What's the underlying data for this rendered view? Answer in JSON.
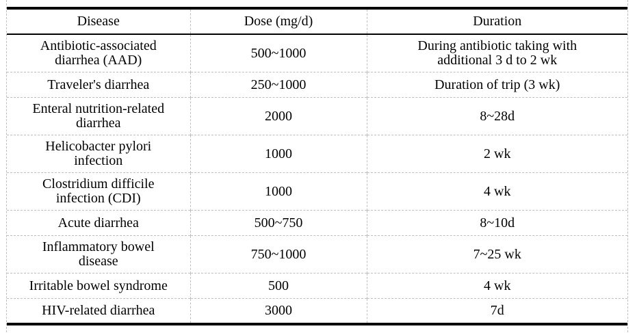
{
  "table": {
    "columns": [
      {
        "label": "Disease"
      },
      {
        "label": "Dose (mg/d)"
      },
      {
        "label": "Duration"
      }
    ],
    "rows": [
      {
        "disease": "Antibiotic-associated\ndiarrhea (AAD)",
        "dose": "500~1000",
        "duration": "During antibiotic taking with\nadditional 3 d to 2 wk"
      },
      {
        "disease": "Traveler's diarrhea",
        "dose": "250~1000",
        "duration": "Duration of trip (3 wk)"
      },
      {
        "disease": "Enteral nutrition-related\ndiarrhea",
        "dose": "2000",
        "duration": "8~28d"
      },
      {
        "disease": "Helicobacter pylori\ninfection",
        "dose": "1000",
        "duration": "2 wk"
      },
      {
        "disease": "Clostridium difficile\ninfection (CDI)",
        "dose": "1000",
        "duration": "4 wk"
      },
      {
        "disease": "Acute diarrhea",
        "dose": "500~750",
        "duration": "8~10d"
      },
      {
        "disease": "Inflammatory bowel\ndisease",
        "dose": "750~1000",
        "duration": "7~25 wk"
      },
      {
        "disease": "Irritable bowel syndrome",
        "dose": "500",
        "duration": "4 wk"
      },
      {
        "disease": "HIV-related diarrhea",
        "dose": "3000",
        "duration": "7d"
      }
    ],
    "colors": {
      "text": "#000000",
      "rule_heavy": "#000000",
      "rule_light": "#bfbfbf",
      "background": "#ffffff"
    }
  }
}
